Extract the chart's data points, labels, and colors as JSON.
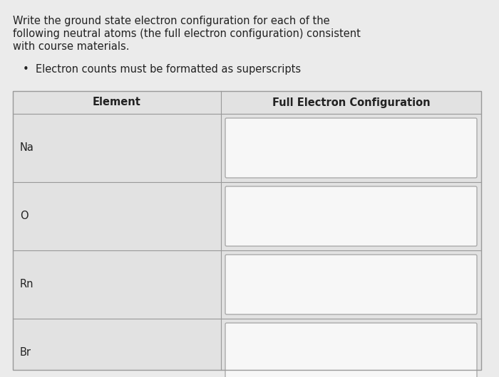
{
  "background_color": "#ebebeb",
  "title_lines": [
    "Write the ground state electron configuration for each of the",
    "following neutral atoms (the full electron configuration) consistent",
    "with course materials."
  ],
  "bullet_text": "Electron counts must be formatted as superscripts",
  "col1_header": "Element",
  "col2_header": "Full Electron Configuration",
  "elements": [
    "Na",
    "O",
    "Rn",
    "Br"
  ],
  "text_color": "#222222",
  "title_font_size": 10.5,
  "body_font_size": 10.5,
  "header_font_size": 10.5,
  "table_line_color": "#999999",
  "input_box_color": "#f7f7f7",
  "input_box_border_color": "#aaaaaa",
  "table_bg_color": "#e2e2e2",
  "fig_width": 7.0,
  "fig_height": 5.3,
  "dpi": 100
}
